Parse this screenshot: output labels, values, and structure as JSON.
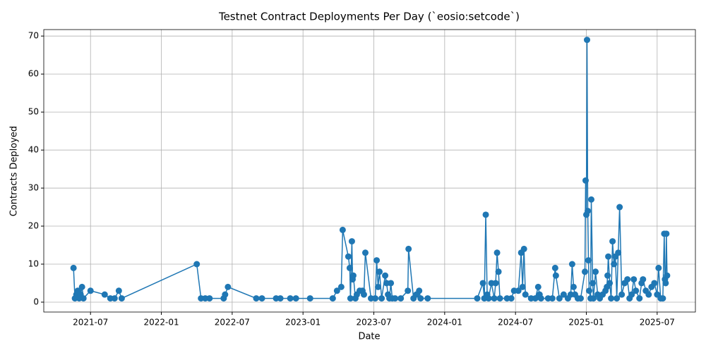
{
  "chart_data": {
    "type": "line",
    "title": "Testnet Contract Deployments Per Day (`eosio:setcode`)",
    "x_label": "Date",
    "y_label": "Contracts Deployed",
    "x": [
      2021.38,
      2021.39,
      2021.4,
      2021.41,
      2021.42,
      2021.43,
      2021.44,
      2021.45,
      2021.5,
      2021.6,
      2021.64,
      2021.67,
      2021.7,
      2021.72,
      2022.25,
      2022.28,
      2022.31,
      2022.34,
      2022.44,
      2022.45,
      2022.47,
      2022.67,
      2022.71,
      2022.81,
      2022.84,
      2022.91,
      2022.95,
      2023.05,
      2023.21,
      2023.24,
      2023.27,
      2023.28,
      2023.32,
      2023.33,
      2023.335,
      2023.345,
      2023.35,
      2023.355,
      2023.37,
      2023.38,
      2023.4,
      2023.42,
      2023.43,
      2023.44,
      2023.48,
      2023.51,
      2023.52,
      2023.53,
      2023.54,
      2023.555,
      2023.58,
      2023.59,
      2023.6,
      2023.61,
      2023.62,
      2023.63,
      2023.65,
      2023.69,
      2023.74,
      2023.745,
      2023.78,
      2023.8,
      2023.82,
      2023.83,
      2023.88,
      2024.23,
      2024.27,
      2024.28,
      2024.29,
      2024.3,
      2024.31,
      2024.33,
      2024.35,
      2024.36,
      2024.37,
      2024.38,
      2024.39,
      2024.44,
      2024.47,
      2024.49,
      2024.52,
      2024.54,
      2024.55,
      2024.56,
      2024.57,
      2024.61,
      2024.64,
      2024.66,
      2024.67,
      2024.68,
      2024.73,
      2024.76,
      2024.78,
      2024.785,
      2024.81,
      2024.84,
      2024.87,
      2024.89,
      2024.9,
      2024.91,
      2024.92,
      2024.94,
      2024.96,
      2024.99,
      2024.995,
      2025.0,
      2025.005,
      2025.01,
      2025.015,
      2025.02,
      2025.03,
      2025.035,
      2025.045,
      2025.05,
      2025.065,
      2025.08,
      2025.095,
      2025.115,
      2025.135,
      2025.145,
      2025.15,
      2025.155,
      2025.165,
      2025.175,
      2025.185,
      2025.195,
      2025.205,
      2025.215,
      2025.225,
      2025.235,
      2025.25,
      2025.27,
      2025.29,
      2025.305,
      2025.32,
      2025.335,
      2025.35,
      2025.375,
      2025.39,
      2025.4,
      2025.42,
      2025.44,
      2025.46,
      2025.48,
      2025.5,
      2025.51,
      2025.525,
      2025.54,
      2025.55,
      2025.555,
      2025.56,
      2025.565,
      2025.57
    ],
    "series": [
      {
        "color": "#1f77b4",
        "values": [
          9,
          1,
          2,
          3,
          1,
          2,
          4,
          1,
          3,
          2,
          1,
          1,
          3,
          1,
          10,
          1,
          1,
          1,
          1,
          2,
          4,
          1,
          1,
          1,
          1,
          1,
          1,
          1,
          1,
          3,
          4,
          19,
          12,
          9,
          1,
          16,
          6,
          7,
          1,
          2,
          3,
          3,
          2,
          13,
          1,
          1,
          11,
          4,
          8,
          1,
          7,
          5,
          2,
          1,
          5,
          1,
          1,
          1,
          3,
          14,
          1,
          2,
          3,
          1,
          1,
          1,
          5,
          1,
          23,
          2,
          1,
          5,
          1,
          5,
          13,
          8,
          1,
          1,
          1,
          3,
          3,
          13,
          4,
          14,
          2,
          1,
          1,
          4,
          2,
          1,
          1,
          1,
          9,
          7,
          1,
          2,
          1,
          2,
          10,
          4,
          2,
          1,
          1,
          8,
          32,
          23,
          69,
          24,
          11,
          3,
          1,
          27,
          5,
          1,
          8,
          2,
          1,
          2,
          3,
          4,
          7,
          12,
          5,
          1,
          16,
          10,
          12,
          1,
          13,
          25,
          2,
          5,
          6,
          1,
          2,
          6,
          3,
          1,
          5,
          6,
          3,
          2,
          4,
          5,
          2,
          9,
          1,
          1,
          18,
          6,
          5,
          18,
          7
        ]
      }
    ],
    "xlim": [
      2021.17,
      2025.77
    ],
    "ylim": [
      -2.6,
      71.7
    ],
    "xticks": [
      {
        "value": 2021.5,
        "label": "2021-07"
      },
      {
        "value": 2022.0,
        "label": "2022-01"
      },
      {
        "value": 2022.5,
        "label": "2022-07"
      },
      {
        "value": 2023.0,
        "label": "2023-01"
      },
      {
        "value": 2023.5,
        "label": "2023-07"
      },
      {
        "value": 2024.0,
        "label": "2024-01"
      },
      {
        "value": 2024.5,
        "label": "2024-07"
      },
      {
        "value": 2025.0,
        "label": "2025-01"
      },
      {
        "value": 2025.5,
        "label": "2025-07"
      }
    ],
    "yticks": [
      0,
      10,
      20,
      30,
      40,
      50,
      60,
      70
    ],
    "grid": true
  }
}
